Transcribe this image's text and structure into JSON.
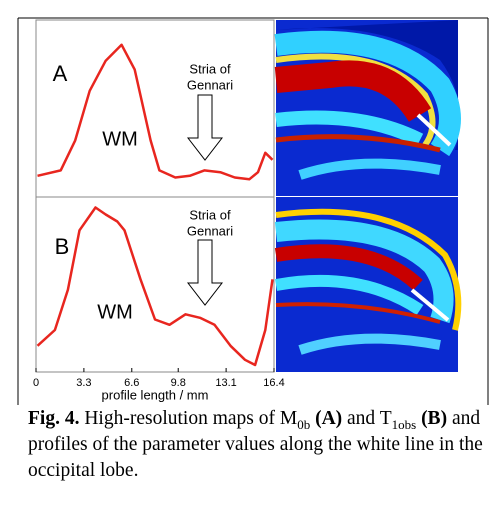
{
  "chart_data": [
    {
      "type": "line",
      "panel_label": "A",
      "annotations": [
        "WM",
        "Stria of",
        "Gennari"
      ],
      "x": [
        0.1,
        1.7,
        2.7,
        3.7,
        4.8,
        5.9,
        6.8,
        7.9,
        8.5,
        9.6,
        10.6,
        11.6,
        12.7,
        13.7,
        14.7,
        15.3,
        15.8,
        16.3
      ],
      "series": [
        {
          "color": "#e8261f",
          "values": [
            0.12,
            0.15,
            0.32,
            0.6,
            0.77,
            0.86,
            0.72,
            0.32,
            0.15,
            0.11,
            0.12,
            0.15,
            0.14,
            0.11,
            0.1,
            0.14,
            0.25,
            0.21
          ]
        }
      ],
      "xlim": [
        0,
        16.4
      ],
      "ylim": [
        0,
        1
      ]
    },
    {
      "type": "line",
      "panel_label": "B",
      "annotations": [
        "WM",
        "Stria of",
        "Gennari"
      ],
      "x": [
        0.1,
        1.3,
        2.2,
        3.0,
        4.1,
        4.8,
        5.6,
        6.1,
        7.2,
        8.2,
        9.2,
        10.3,
        11.3,
        12.3,
        13.4,
        14.4,
        15.1,
        15.8,
        16.3
      ],
      "series": [
        {
          "color": "#e8261f",
          "values": [
            0.15,
            0.24,
            0.47,
            0.81,
            0.94,
            0.9,
            0.86,
            0.81,
            0.53,
            0.3,
            0.27,
            0.33,
            0.31,
            0.27,
            0.15,
            0.07,
            0.04,
            0.24,
            0.53
          ]
        }
      ],
      "xlim": [
        0,
        16.4
      ],
      "ylim": [
        0,
        1
      ],
      "xticks": [
        0,
        3.3,
        6.6,
        9.8,
        13.1,
        16.4
      ],
      "xlabel": "profile length / mm"
    }
  ],
  "caption": [
    "Fig. 4.",
    "High-resolution maps of M",
    "0b",
    "(A)",
    "and T",
    "1obs",
    "(B)",
    "and profiles of the parameter values along the white line in the occipital lobe."
  ]
}
